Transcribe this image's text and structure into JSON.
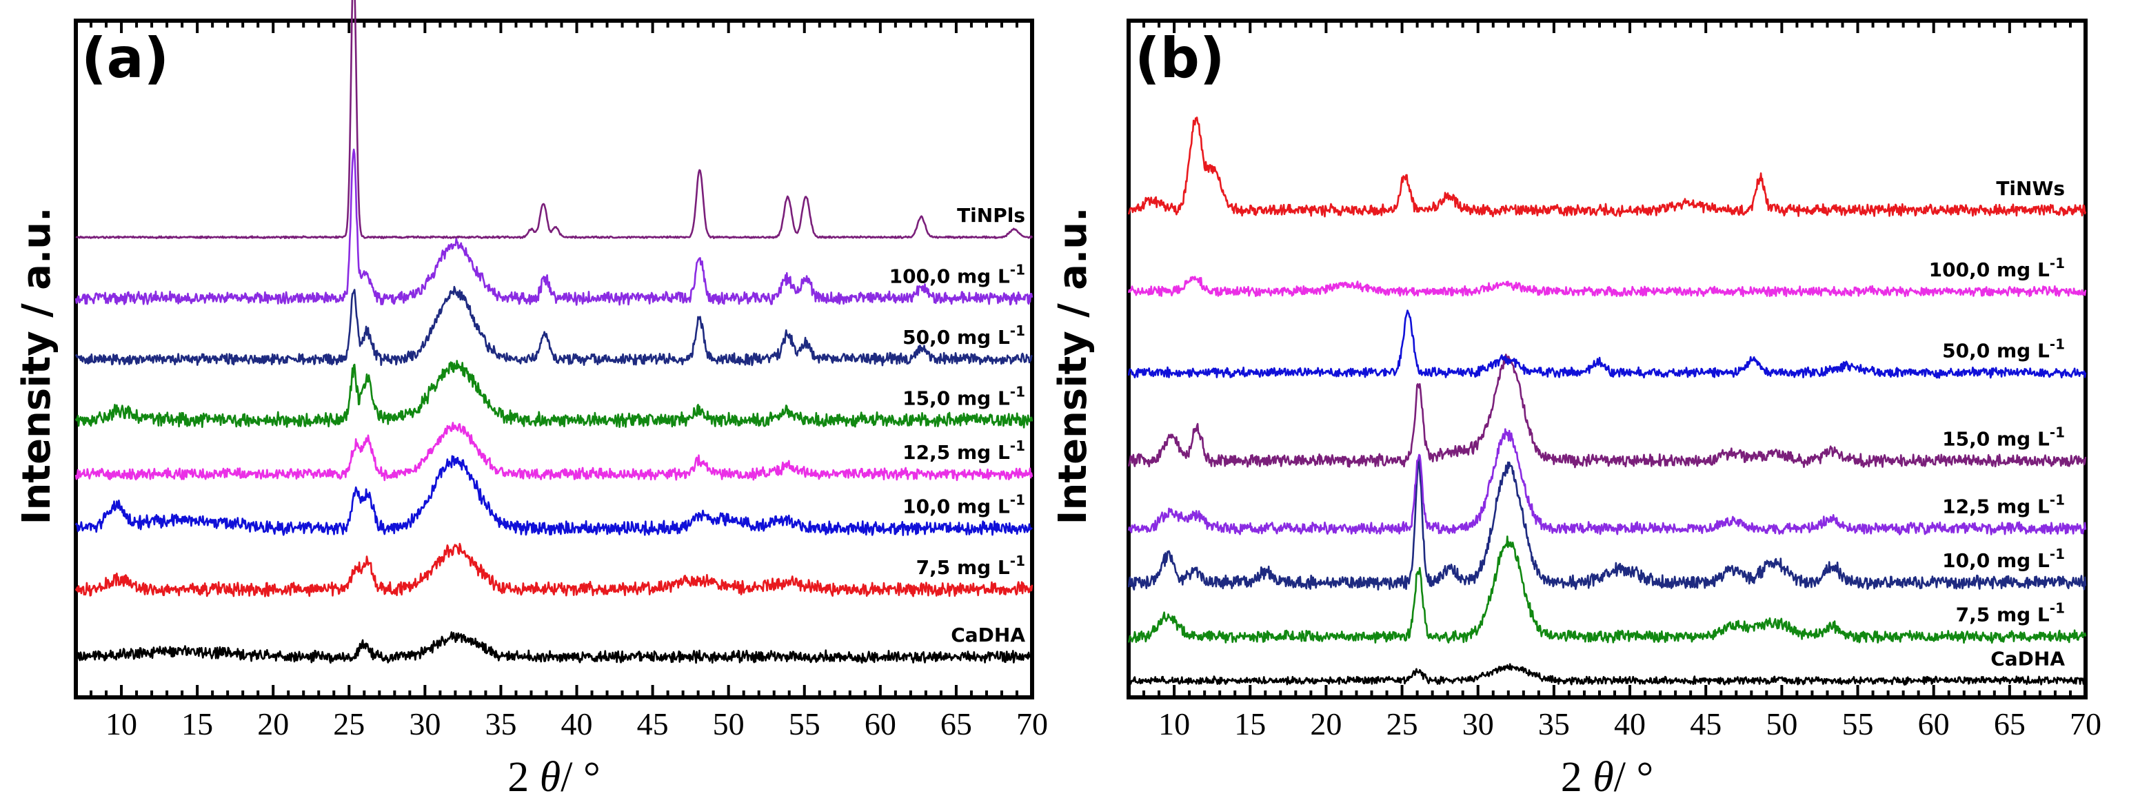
{
  "chart_data": [
    {
      "panel": "(a)",
      "type": "line",
      "xlabel_prefix": "2 ",
      "xlabel_symbol": "θ",
      "xlabel_suffix": "/ °",
      "ylabel": "Intensity / a.u.",
      "xlim": [
        7,
        70
      ],
      "xticks": [
        10,
        15,
        20,
        25,
        30,
        35,
        40,
        45,
        50,
        55,
        60,
        65,
        70
      ],
      "series": [
        {
          "name": "CaDHA",
          "label": "CaDHA",
          "color": "#000000",
          "baseline": 0.06,
          "noise": 0.012,
          "peaks": [
            [
              26.0,
              0.02,
              0.3
            ],
            [
              32.1,
              0.03,
              1.3
            ],
            [
              14.0,
              0.008,
              3.0
            ]
          ]
        },
        {
          "name": "7.5 mg/L",
          "label": "7,5 mg L",
          "sup": "-1",
          "color": "#e8191e",
          "baseline": 0.16,
          "noise": 0.014,
          "peaks": [
            [
              25.4,
              0.03,
              0.25
            ],
            [
              26.2,
              0.04,
              0.35
            ],
            [
              32.0,
              0.06,
              1.3
            ],
            [
              9.8,
              0.015,
              0.6
            ],
            [
              48,
              0.012,
              1.5
            ],
            [
              54,
              0.01,
              1.0
            ]
          ]
        },
        {
          "name": "10.0 mg/L",
          "label": "10,0 mg L",
          "sup": "-1",
          "color": "#1010d8",
          "baseline": 0.25,
          "noise": 0.014,
          "peaks": [
            [
              9.6,
              0.03,
              0.5
            ],
            [
              14.0,
              0.012,
              3.0
            ],
            [
              25.4,
              0.05,
              0.25
            ],
            [
              26.2,
              0.05,
              0.35
            ],
            [
              32.0,
              0.1,
              1.4
            ],
            [
              48.1,
              0.015,
              0.4
            ],
            [
              49.8,
              0.015,
              1.2
            ],
            [
              53.8,
              0.012,
              0.8
            ]
          ]
        },
        {
          "name": "12.5 mg/L",
          "label": "12,5 mg L",
          "sup": "-1",
          "color": "#ea2fe6",
          "baseline": 0.33,
          "noise": 0.012,
          "peaks": [
            [
              25.4,
              0.04,
              0.25
            ],
            [
              26.2,
              0.05,
              0.35
            ],
            [
              32.0,
              0.07,
              1.3
            ],
            [
              48.1,
              0.02,
              0.35
            ],
            [
              54,
              0.01,
              0.8
            ]
          ]
        },
        {
          "name": "15.0 mg/L",
          "label": "15,0 mg L",
          "sup": "-1",
          "color": "#118811",
          "baseline": 0.41,
          "noise": 0.015,
          "peaks": [
            [
              25.3,
              0.07,
              0.2
            ],
            [
              26.2,
              0.06,
              0.35
            ],
            [
              32.0,
              0.08,
              1.4
            ],
            [
              10.0,
              0.012,
              1.0
            ],
            [
              48.1,
              0.015,
              0.35
            ],
            [
              53.9,
              0.012,
              0.6
            ]
          ]
        },
        {
          "name": "50.0 mg/L",
          "label": "50,0 mg L",
          "sup": "-1",
          "color": "#1e2a80",
          "baseline": 0.5,
          "noise": 0.012,
          "peaks": [
            [
              25.3,
              0.1,
              0.2
            ],
            [
              26.2,
              0.04,
              0.3
            ],
            [
              32.0,
              0.1,
              1.2
            ],
            [
              37.9,
              0.04,
              0.25
            ],
            [
              48.1,
              0.06,
              0.25
            ],
            [
              53.9,
              0.035,
              0.35
            ],
            [
              55.1,
              0.025,
              0.3
            ],
            [
              62.7,
              0.015,
              0.3
            ]
          ]
        },
        {
          "name": "100.0 mg/L",
          "label": "100,0 mg L",
          "sup": "-1",
          "color": "#8a2be2",
          "baseline": 0.59,
          "noise": 0.013,
          "peaks": [
            [
              25.3,
              0.22,
              0.18
            ],
            [
              26.1,
              0.04,
              0.3
            ],
            [
              32.0,
              0.08,
              1.2
            ],
            [
              37.9,
              0.03,
              0.25
            ],
            [
              48.1,
              0.06,
              0.25
            ],
            [
              53.9,
              0.03,
              0.35
            ],
            [
              55.1,
              0.03,
              0.3
            ],
            [
              62.8,
              0.015,
              0.3
            ]
          ]
        },
        {
          "name": "TiNPls",
          "label": "TiNPls",
          "color": "#7a1f7a",
          "baseline": 0.68,
          "noise": 0.002,
          "peaks": [
            [
              25.3,
              0.4,
              0.17
            ],
            [
              37.0,
              0.012,
              0.2
            ],
            [
              37.8,
              0.05,
              0.22
            ],
            [
              38.6,
              0.015,
              0.2
            ],
            [
              48.1,
              0.1,
              0.22
            ],
            [
              53.9,
              0.06,
              0.25
            ],
            [
              55.1,
              0.06,
              0.25
            ],
            [
              62.7,
              0.03,
              0.25
            ],
            [
              68.8,
              0.012,
              0.3
            ]
          ]
        }
      ]
    },
    {
      "panel": "(b)",
      "type": "line",
      "xlabel_prefix": "2 ",
      "xlabel_symbol": "θ",
      "xlabel_suffix": "/ °",
      "ylabel": "Intensity / a.u.",
      "xlim": [
        7,
        70
      ],
      "xticks": [
        10,
        15,
        20,
        25,
        30,
        35,
        40,
        45,
        50,
        55,
        60,
        65,
        70
      ],
      "series": [
        {
          "name": "CaDHA",
          "label": "CaDHA",
          "color": "#000000",
          "baseline": 0.025,
          "noise": 0.008,
          "peaks": [
            [
              26.0,
              0.015,
              0.3
            ],
            [
              32.1,
              0.02,
              1.2
            ]
          ]
        },
        {
          "name": "7.5 mg/L",
          "label": "7,5 mg L",
          "sup": "-1",
          "color": "#118811",
          "baseline": 0.09,
          "noise": 0.012,
          "peaks": [
            [
              9.6,
              0.03,
              0.6
            ],
            [
              26.1,
              0.1,
              0.25
            ],
            [
              32.0,
              0.14,
              0.9
            ],
            [
              46.9,
              0.015,
              0.8
            ],
            [
              49.5,
              0.02,
              1.0
            ],
            [
              53.3,
              0.015,
              0.5
            ]
          ]
        },
        {
          "name": "10.0 mg/L",
          "label": "10,0 mg L",
          "sup": "-1",
          "color": "#1e2a80",
          "baseline": 0.17,
          "noise": 0.014,
          "peaks": [
            [
              9.6,
              0.04,
              0.4
            ],
            [
              11.3,
              0.015,
              0.4
            ],
            [
              16.0,
              0.015,
              0.5
            ],
            [
              26.1,
              0.18,
              0.22
            ],
            [
              28.1,
              0.02,
              0.5
            ],
            [
              32.0,
              0.17,
              0.9
            ],
            [
              39.5,
              0.02,
              1.0
            ],
            [
              46.8,
              0.02,
              0.6
            ],
            [
              49.5,
              0.03,
              0.8
            ],
            [
              53.3,
              0.025,
              0.5
            ]
          ]
        },
        {
          "name": "12.5 mg/L",
          "label": "12,5 mg L",
          "sup": "-1",
          "color": "#8a2be2",
          "baseline": 0.25,
          "noise": 0.012,
          "peaks": [
            [
              9.8,
              0.025,
              0.6
            ],
            [
              11.5,
              0.02,
              0.5
            ],
            [
              26.1,
              0.11,
              0.22
            ],
            [
              31.9,
              0.14,
              0.9
            ],
            [
              46.8,
              0.012,
              0.6
            ],
            [
              53.3,
              0.015,
              0.5
            ]
          ]
        },
        {
          "name": "15.0 mg/L",
          "label": "15,0 mg L",
          "sup": "-1",
          "color": "#7a1f7a",
          "baseline": 0.35,
          "noise": 0.013,
          "peaks": [
            [
              9.8,
              0.035,
              0.5
            ],
            [
              11.5,
              0.05,
              0.3
            ],
            [
              26.1,
              0.11,
              0.25
            ],
            [
              29.0,
              0.015,
              1.5
            ],
            [
              32.0,
              0.15,
              0.9
            ],
            [
              46.8,
              0.012,
              0.6
            ],
            [
              49.5,
              0.012,
              0.7
            ],
            [
              53.3,
              0.015,
              0.5
            ]
          ]
        },
        {
          "name": "50.0 mg/L",
          "label": "50,0 mg L",
          "sup": "-1",
          "color": "#1010d8",
          "baseline": 0.48,
          "noise": 0.01,
          "peaks": [
            [
              25.4,
              0.09,
              0.3
            ],
            [
              31.8,
              0.02,
              0.8
            ],
            [
              37.9,
              0.015,
              0.4
            ],
            [
              48.1,
              0.02,
              0.4
            ],
            [
              54.4,
              0.01,
              0.8
            ]
          ]
        },
        {
          "name": "100.0 mg/L",
          "label": "100,0 mg L",
          "sup": "-1",
          "color": "#ea2fe6",
          "baseline": 0.6,
          "noise": 0.01,
          "peaks": [
            [
              11.3,
              0.02,
              0.5
            ],
            [
              21.5,
              0.01,
              1.0
            ],
            [
              31.8,
              0.01,
              1.0
            ]
          ]
        },
        {
          "name": "TiNWs",
          "label": "TiNWs",
          "color": "#e8191e",
          "baseline": 0.72,
          "noise": 0.012,
          "peaks": [
            [
              8.5,
              0.015,
              0.6
            ],
            [
              11.4,
              0.13,
              0.4
            ],
            [
              12.6,
              0.06,
              0.5
            ],
            [
              25.2,
              0.05,
              0.3
            ],
            [
              28.0,
              0.02,
              0.5
            ],
            [
              48.6,
              0.05,
              0.25
            ],
            [
              43.8,
              0.01,
              1.0
            ]
          ]
        }
      ]
    }
  ]
}
